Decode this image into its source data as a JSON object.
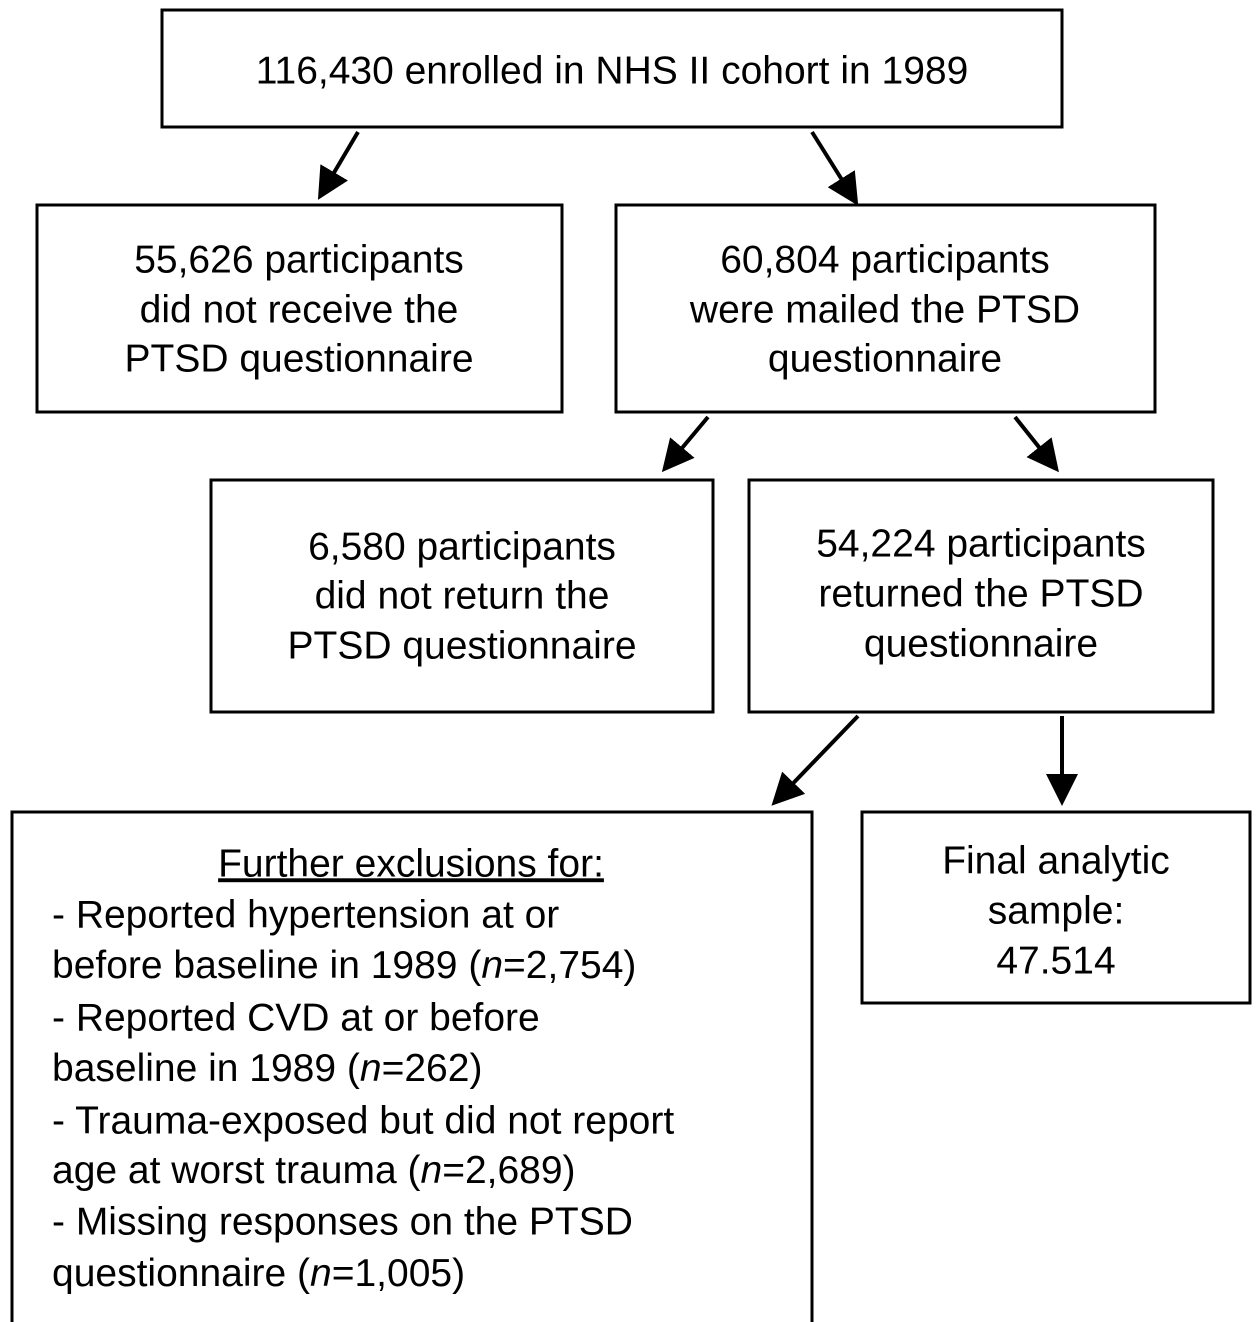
{
  "nodes": [
    {
      "lines": [
        "116,430 enrolled in NHS II cohort in 1989"
      ]
    },
    {
      "lines": [
        "55,626 participants",
        "did not receive the",
        "PTSD questionnaire"
      ]
    },
    {
      "lines": [
        "60,804 participants",
        "were mailed the PTSD",
        "questionnaire"
      ]
    },
    {
      "lines": [
        "6,580 participants",
        "did not return the",
        "PTSD questionnaire"
      ]
    },
    {
      "lines": [
        "54,224 participants",
        "returned the PTSD",
        "questionnaire"
      ]
    },
    {
      "heading": "Further exclusions for:",
      "lines": [
        "- Reported hypertension at or",
        [
          {
            "text": "before baseline in 1989 ("
          },
          {
            "text": "n",
            "italic": true
          },
          {
            "text": "=2,754)"
          }
        ],
        "- Reported CVD at or before",
        [
          {
            "text": "baseline in 1989 ("
          },
          {
            "text": "n",
            "italic": true
          },
          {
            "text": "=262)"
          }
        ],
        "- Trauma-exposed but did not report",
        [
          {
            "text": "age at worst trauma ("
          },
          {
            "text": "n",
            "italic": true
          },
          {
            "text": "=2,689)"
          }
        ],
        "- Missing responses on the PTSD",
        [
          {
            "text": "questionnaire ("
          },
          {
            "text": "n",
            "italic": true
          },
          {
            "text": "=1,005)"
          }
        ]
      ]
    },
    {
      "lines": [
        "Final analytic",
        "sample:",
        "47.514"
      ]
    }
  ]
}
